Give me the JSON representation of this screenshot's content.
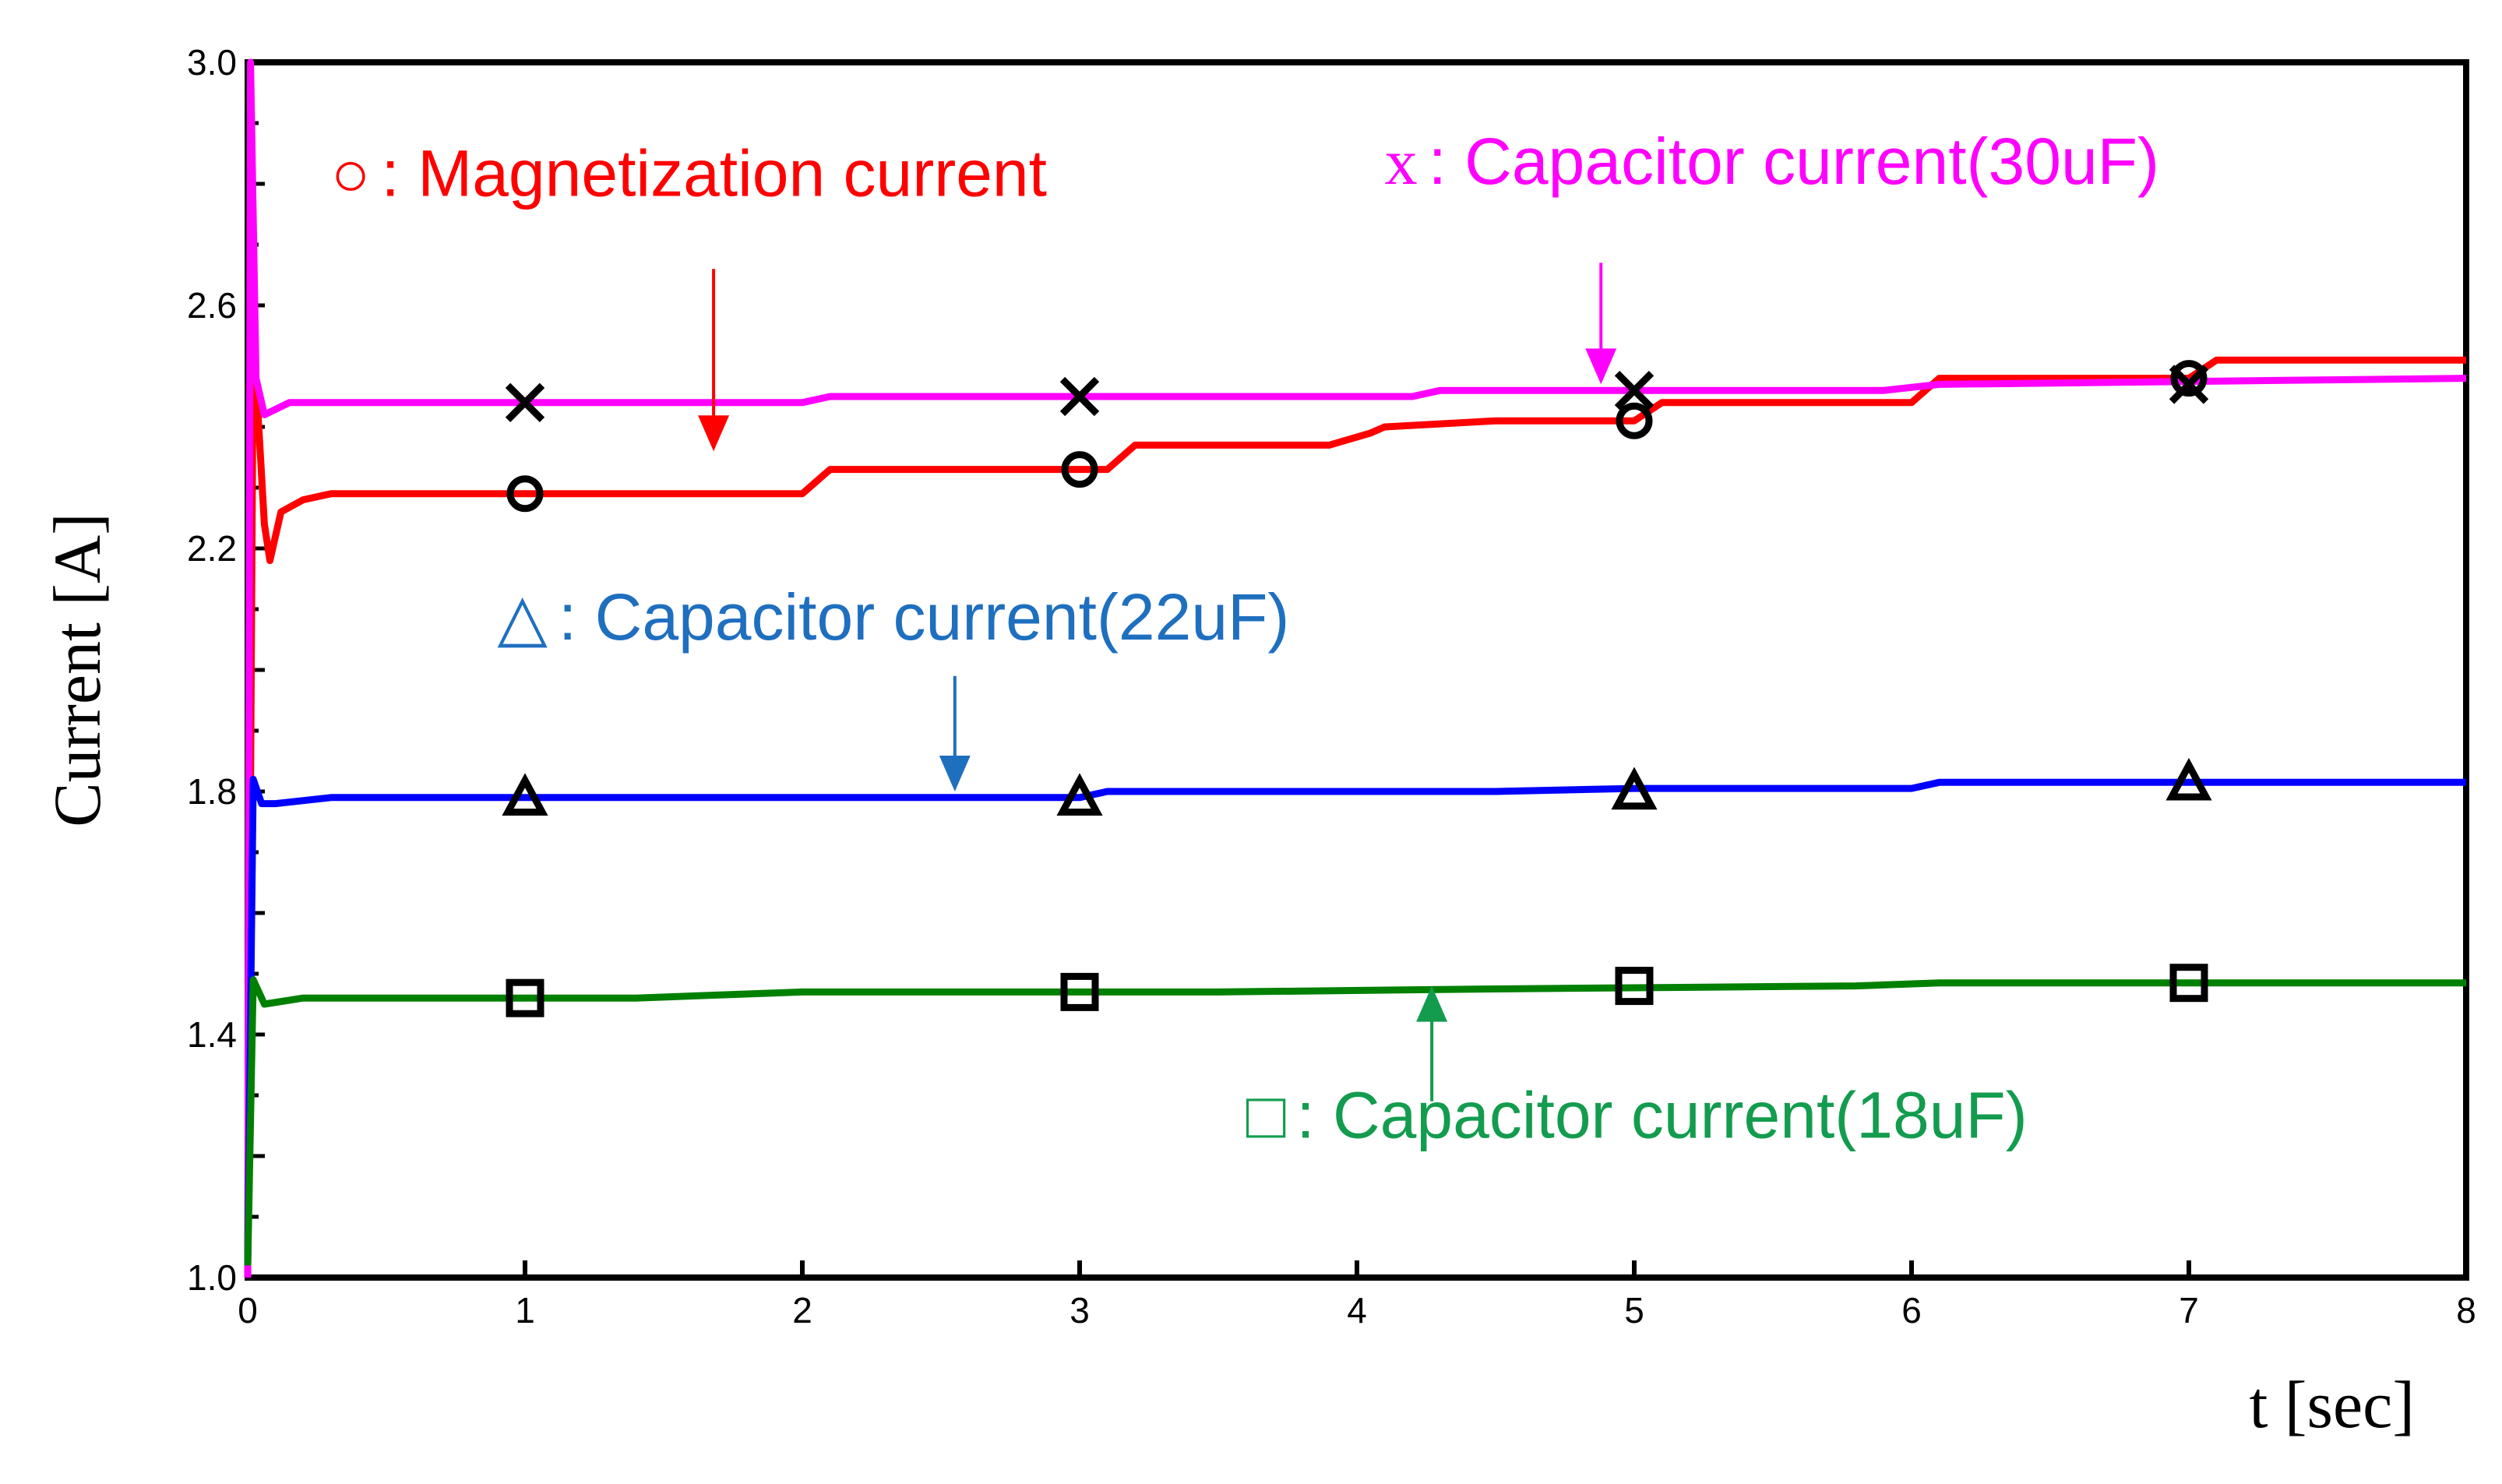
{
  "chart_data": {
    "type": "line",
    "xlabel": "t [sec]",
    "ylabel": "Current [A]",
    "xlim": [
      0,
      8
    ],
    "ylim": [
      1.0,
      3.0
    ],
    "xticks": [
      "0",
      "1",
      "2",
      "3",
      "4",
      "5",
      "6",
      "7",
      "8"
    ],
    "yticks": [
      "1.0",
      "1.4",
      "1.8",
      "2.2",
      "2.6",
      "3.0"
    ],
    "series": [
      {
        "key": "magnetization",
        "color": "#ff0000",
        "marker": "circle",
        "points": [
          [
            0.0,
            1.02
          ],
          [
            0.02,
            2.55
          ],
          [
            0.04,
            2.4
          ],
          [
            0.06,
            2.24
          ],
          [
            0.08,
            2.18
          ],
          [
            0.12,
            2.26
          ],
          [
            0.2,
            2.28
          ],
          [
            0.3,
            2.29
          ],
          [
            2.0,
            2.29
          ],
          [
            2.1,
            2.33
          ],
          [
            3.1,
            2.33
          ],
          [
            3.2,
            2.37
          ],
          [
            3.9,
            2.37
          ],
          [
            4.05,
            2.39
          ],
          [
            4.1,
            2.4
          ],
          [
            4.5,
            2.41
          ],
          [
            5.0,
            2.41
          ],
          [
            5.1,
            2.44
          ],
          [
            6.0,
            2.44
          ],
          [
            6.1,
            2.48
          ],
          [
            7.0,
            2.48
          ],
          [
            7.1,
            2.51
          ],
          [
            8.0,
            2.51
          ]
        ],
        "markers": [
          [
            1,
            2.29
          ],
          [
            3,
            2.33
          ],
          [
            5,
            2.41
          ],
          [
            7,
            2.48
          ]
        ]
      },
      {
        "key": "cap30",
        "color": "#ff00ff",
        "marker": "x",
        "points": [
          [
            0.0,
            1.0
          ],
          [
            0.01,
            3.0
          ],
          [
            0.03,
            2.48
          ],
          [
            0.06,
            2.42
          ],
          [
            0.15,
            2.44
          ],
          [
            2.0,
            2.44
          ],
          [
            2.1,
            2.45
          ],
          [
            4.2,
            2.45
          ],
          [
            4.3,
            2.46
          ],
          [
            5.9,
            2.46
          ],
          [
            6.1,
            2.47
          ],
          [
            8.0,
            2.48
          ]
        ],
        "markers": [
          [
            1,
            2.44
          ],
          [
            3,
            2.45
          ],
          [
            5,
            2.46
          ],
          [
            7,
            2.47
          ]
        ]
      },
      {
        "key": "cap22",
        "color": "#0000ff",
        "marker": "triangle",
        "points": [
          [
            0.0,
            1.02
          ],
          [
            0.02,
            1.82
          ],
          [
            0.05,
            1.78
          ],
          [
            0.1,
            1.78
          ],
          [
            0.3,
            1.79
          ],
          [
            3.0,
            1.79
          ],
          [
            3.1,
            1.8
          ],
          [
            4.5,
            1.8
          ],
          [
            5.0,
            1.805
          ],
          [
            6.0,
            1.805
          ],
          [
            6.1,
            1.815
          ],
          [
            8.0,
            1.815
          ]
        ],
        "markers": [
          [
            1,
            1.79
          ],
          [
            3,
            1.79
          ],
          [
            5,
            1.8
          ],
          [
            7,
            1.815
          ]
        ]
      },
      {
        "key": "cap18",
        "color": "#008000",
        "marker": "square",
        "points": [
          [
            0.0,
            1.02
          ],
          [
            0.02,
            1.49
          ],
          [
            0.06,
            1.45
          ],
          [
            0.2,
            1.46
          ],
          [
            1.4,
            1.46
          ],
          [
            2.0,
            1.47
          ],
          [
            3.5,
            1.47
          ],
          [
            4.5,
            1.475
          ],
          [
            5.8,
            1.48
          ],
          [
            6.1,
            1.485
          ],
          [
            8.0,
            1.485
          ]
        ],
        "markers": [
          [
            1,
            1.46
          ],
          [
            3,
            1.47
          ],
          [
            5,
            1.48
          ],
          [
            7,
            1.485
          ]
        ]
      }
    ],
    "annotations": [
      {
        "key": "magnetization",
        "symbol": "○",
        "text": ": Magnetization current",
        "color": "#ff0000",
        "label_at": [
          0.3,
          2.78
        ],
        "arrow_from": [
          1.68,
          2.66
        ],
        "arrow_to": [
          1.68,
          2.36
        ]
      },
      {
        "key": "cap30",
        "symbol": "x",
        "text": ": Capacitor current(30uF)",
        "color": "#ff00ff",
        "label_at": [
          4.1,
          2.8
        ],
        "arrow_from": [
          4.88,
          2.67
        ],
        "arrow_to": [
          4.88,
          2.47
        ]
      },
      {
        "key": "cap22",
        "symbol": "△",
        "text": ": Capacitor current(22uF)",
        "color": "#1f6fbf",
        "label_at": [
          0.9,
          2.05
        ],
        "arrow_from": [
          2.55,
          1.99
        ],
        "arrow_to": [
          2.55,
          1.8
        ]
      },
      {
        "key": "cap18",
        "symbol": "□",
        "text": ": Capacitor current(18uF)",
        "color": "#139c4e",
        "label_at": [
          3.6,
          1.23
        ],
        "arrow_from": [
          4.27,
          1.29
        ],
        "arrow_to": [
          4.27,
          1.48
        ]
      }
    ]
  }
}
